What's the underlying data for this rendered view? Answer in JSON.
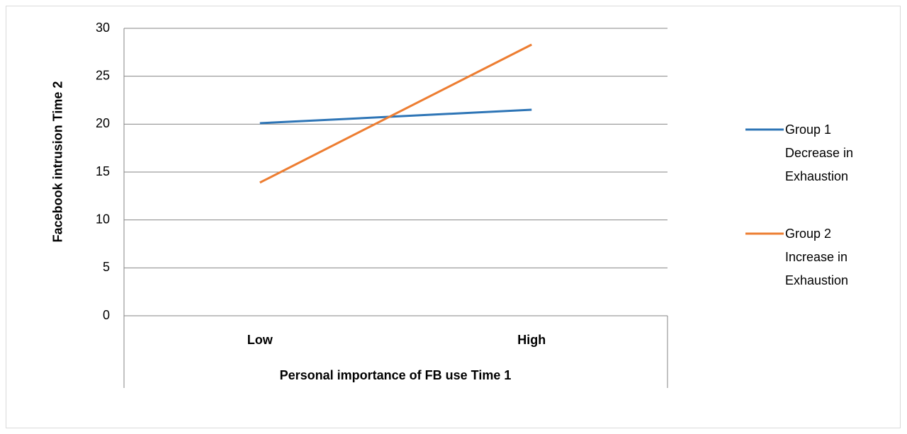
{
  "chart_data": {
    "type": "line",
    "categories": [
      "Low",
      "High"
    ],
    "series": [
      {
        "name": "Group 1 Decrease in Exhaustion",
        "color": "#2e75b6",
        "values": [
          20.1,
          21.5
        ]
      },
      {
        "name": "Group 2 Increase in Exhaustion",
        "color": "#ed7d31",
        "values": [
          13.9,
          28.3
        ]
      }
    ],
    "xlabel": "Personal importance of FB use Time 1",
    "ylabel": "Facebook intrusion Time 2",
    "ylim": [
      0,
      30
    ],
    "yticks": [
      0,
      5,
      10,
      15,
      20,
      25,
      30
    ],
    "grid": true,
    "legend": "right"
  }
}
